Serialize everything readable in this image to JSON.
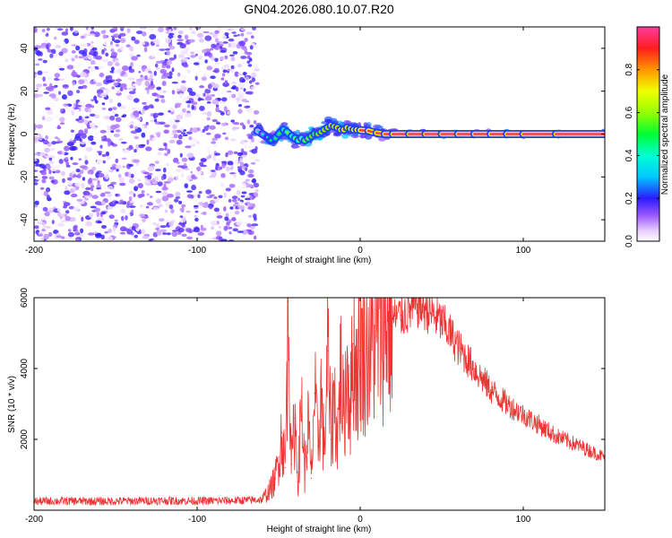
{
  "figure_title": "GN04.2026.080.10.07.R20",
  "chart_data": [
    {
      "type": "heatmap",
      "title": "",
      "xlabel": "Height of straight line (km)",
      "ylabel": "Frequency (Hz)",
      "xlim": [
        -200,
        150
      ],
      "ylim": [
        -50,
        50
      ],
      "xticks": [
        -200,
        -100,
        0,
        100
      ],
      "xtick_labels": [
        "-200",
        "-100",
        "0",
        "100"
      ],
      "yticks": [
        -40,
        -20,
        0,
        20,
        40
      ],
      "ytick_labels": [
        "-40",
        "-20",
        "0",
        "20",
        "40"
      ],
      "colorbar": {
        "label": "Normalized spectral amplitude",
        "range": [
          0,
          1
        ],
        "ticks": [
          0.0,
          0.2,
          0.4,
          0.6,
          0.8
        ],
        "tick_labels": [
          "0.0",
          "0.2",
          "0.4",
          "0.6",
          "0.8"
        ]
      },
      "noise_region_x": [
        -200,
        -63
      ],
      "noise_amplitude_range": [
        0.0,
        0.2
      ],
      "ridge": {
        "x": [
          -63,
          -60,
          -57,
          -55,
          -52,
          -50,
          -47,
          -45,
          -42,
          -40,
          -38,
          -36,
          -34,
          -32,
          -30,
          -28,
          -26,
          -24,
          -22,
          -20,
          -18,
          -16,
          -14,
          -12,
          -10,
          -8,
          -6,
          -4,
          -2,
          0,
          5,
          10,
          15,
          20,
          30,
          40,
          50,
          60,
          70,
          80,
          90,
          100,
          120,
          150
        ],
        "freq": [
          1.5,
          0,
          -1.5,
          -3,
          -2,
          0,
          2,
          1,
          -1,
          -2,
          -3,
          -2,
          -3,
          -2,
          -1,
          0,
          0,
          1,
          2,
          3,
          4,
          3.5,
          3,
          2,
          2,
          3,
          2.5,
          2,
          2,
          1.8,
          1.5,
          0.5,
          0,
          0,
          0,
          0,
          0,
          0,
          0,
          0,
          0,
          0,
          0,
          0
        ],
        "amplitude": [
          0.3,
          0.35,
          0.4,
          0.45,
          0.5,
          0.55,
          0.5,
          0.6,
          0.55,
          0.6,
          0.65,
          0.6,
          0.7,
          0.75,
          0.7,
          0.8,
          0.75,
          0.8,
          0.85,
          0.8,
          0.85,
          0.9,
          0.85,
          0.9,
          0.9,
          0.95,
          0.9,
          0.9,
          0.95,
          0.95,
          0.95,
          0.97,
          0.98,
          0.98,
          0.98,
          0.99,
          0.99,
          0.98,
          0.98,
          0.97,
          0.97,
          0.98,
          0.98,
          0.99
        ]
      }
    },
    {
      "type": "line",
      "title": "",
      "xlabel": "Height of straight line (km)",
      "ylabel": "SNR (10 * v/v)",
      "xlim": [
        -200,
        150
      ],
      "ylim": [
        0,
        6000
      ],
      "xticks": [
        -200,
        -100,
        0,
        100
      ],
      "xtick_labels": [
        "-200",
        "-100",
        "0",
        "100"
      ],
      "yticks": [
        2000,
        4000,
        6000
      ],
      "ytick_labels": [
        "2000",
        "4000",
        "6000"
      ],
      "color": "#ee3333",
      "series": [
        {
          "name": "SNR",
          "x": [
            -200,
            -180,
            -160,
            -140,
            -120,
            -100,
            -80,
            -70,
            -60,
            -55,
            -52,
            -50,
            -48,
            -46,
            -44,
            -42,
            -40,
            -38,
            -36,
            -34,
            -32,
            -30,
            -28,
            -26,
            -24,
            -22,
            -20,
            -18,
            -16,
            -14,
            -12,
            -10,
            -8,
            -6,
            -4,
            -2,
            0,
            5,
            10,
            15,
            20,
            25,
            30,
            35,
            40,
            45,
            50,
            55,
            60,
            65,
            70,
            75,
            80,
            90,
            100,
            110,
            120,
            130,
            140,
            150
          ],
          "y": [
            250,
            260,
            250,
            260,
            270,
            260,
            270,
            280,
            300,
            600,
            900,
            1500,
            2200,
            1200,
            5900,
            1300,
            2600,
            800,
            3200,
            1000,
            2500,
            900,
            3300,
            1800,
            3300,
            1600,
            4500,
            2000,
            3300,
            2000,
            4000,
            2600,
            4200,
            3000,
            4700,
            3800,
            4500,
            4500,
            4900,
            5300,
            5400,
            5500,
            5600,
            5800,
            5700,
            5500,
            5300,
            5000,
            4600,
            4300,
            4000,
            3700,
            3400,
            3000,
            2700,
            2400,
            2100,
            1900,
            1700,
            1500
          ]
        }
      ]
    }
  ]
}
